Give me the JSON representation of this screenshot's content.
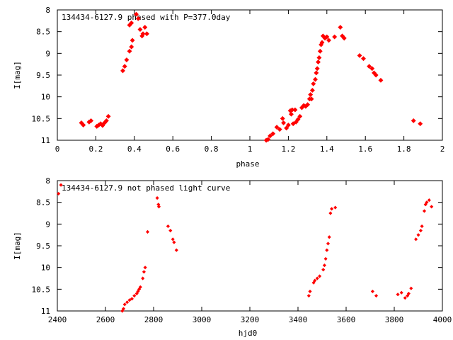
{
  "chart_data": [
    {
      "type": "scatter",
      "title": "134434-6127.9 phased with P=377.0day",
      "xlabel": "phase",
      "ylabel": "I[mag]",
      "xlim": [
        0,
        2
      ],
      "ylim": [
        8,
        11
      ],
      "y_inverted": true,
      "x_ticks": [
        0,
        0.2,
        0.4,
        0.6,
        0.8,
        1,
        1.2,
        1.4,
        1.6,
        1.8,
        2
      ],
      "x_tick_labels": [
        "0",
        "0.2",
        "0.4",
        "0.6",
        "0.8",
        "1",
        "1.2",
        "1.4",
        "1.6",
        "1.8",
        "2"
      ],
      "y_ticks": [
        8,
        8.5,
        9,
        9.5,
        10,
        10.5,
        11
      ],
      "y_tick_labels": [
        "8",
        "8.5",
        "9",
        "9.5",
        "10",
        "10.5",
        "11"
      ],
      "grid": false,
      "marker_color": "#ff0000",
      "points": [
        [
          0.125,
          10.6
        ],
        [
          0.135,
          10.65
        ],
        [
          0.165,
          10.58
        ],
        [
          0.175,
          10.55
        ],
        [
          0.205,
          10.68
        ],
        [
          0.215,
          10.65
        ],
        [
          0.225,
          10.62
        ],
        [
          0.235,
          10.66
        ],
        [
          0.245,
          10.6
        ],
        [
          0.255,
          10.55
        ],
        [
          0.265,
          10.45
        ],
        [
          0.34,
          9.4
        ],
        [
          0.35,
          9.3
        ],
        [
          0.36,
          9.15
        ],
        [
          0.375,
          8.95
        ],
        [
          0.385,
          8.85
        ],
        [
          0.39,
          8.7
        ],
        [
          0.375,
          8.35
        ],
        [
          0.385,
          8.3
        ],
        [
          0.41,
          8.1
        ],
        [
          0.42,
          8.2
        ],
        [
          0.43,
          8.45
        ],
        [
          0.44,
          8.6
        ],
        [
          0.445,
          8.55
        ],
        [
          0.455,
          8.4
        ],
        [
          0.465,
          8.55
        ],
        [
          1.085,
          11.0
        ],
        [
          1.095,
          10.98
        ],
        [
          1.105,
          10.9
        ],
        [
          1.12,
          10.85
        ],
        [
          1.14,
          10.7
        ],
        [
          1.155,
          10.75
        ],
        [
          1.17,
          10.5
        ],
        [
          1.175,
          10.6
        ],
        [
          1.19,
          10.72
        ],
        [
          1.2,
          10.65
        ],
        [
          1.21,
          10.32
        ],
        [
          1.215,
          10.4
        ],
        [
          1.22,
          10.3
        ],
        [
          1.225,
          10.62
        ],
        [
          1.235,
          10.3
        ],
        [
          1.24,
          10.58
        ],
        [
          1.25,
          10.52
        ],
        [
          1.26,
          10.45
        ],
        [
          1.27,
          10.25
        ],
        [
          1.28,
          10.2
        ],
        [
          1.29,
          10.22
        ],
        [
          1.3,
          10.18
        ],
        [
          1.31,
          10.05
        ],
        [
          1.315,
          9.95
        ],
        [
          1.32,
          10.05
        ],
        [
          1.325,
          9.85
        ],
        [
          1.33,
          9.7
        ],
        [
          1.34,
          9.6
        ],
        [
          1.345,
          9.45
        ],
        [
          1.35,
          9.35
        ],
        [
          1.355,
          9.2
        ],
        [
          1.36,
          9.1
        ],
        [
          1.365,
          8.95
        ],
        [
          1.37,
          8.8
        ],
        [
          1.375,
          8.75
        ],
        [
          1.38,
          8.6
        ],
        [
          1.39,
          8.65
        ],
        [
          1.4,
          8.62
        ],
        [
          1.41,
          8.7
        ],
        [
          1.44,
          8.62
        ],
        [
          1.47,
          8.4
        ],
        [
          1.48,
          8.6
        ],
        [
          1.49,
          8.65
        ],
        [
          1.57,
          9.05
        ],
        [
          1.59,
          9.12
        ],
        [
          1.62,
          9.3
        ],
        [
          1.635,
          9.35
        ],
        [
          1.645,
          9.45
        ],
        [
          1.655,
          9.5
        ],
        [
          1.68,
          9.62
        ],
        [
          1.85,
          10.55
        ],
        [
          1.885,
          10.62
        ]
      ]
    },
    {
      "type": "scatter",
      "title": "134434-6127.9 not phased light curve",
      "xlabel": "hjd0",
      "ylabel": "I[mag]",
      "xlim": [
        2400,
        4000
      ],
      "ylim": [
        8,
        11
      ],
      "y_inverted": true,
      "x_ticks": [
        2400,
        2600,
        2800,
        3000,
        3200,
        3400,
        3600,
        3800,
        4000
      ],
      "x_tick_labels": [
        "2400",
        "2600",
        "2800",
        "3000",
        "3200",
        "3400",
        "3600",
        "3800",
        "4000"
      ],
      "y_ticks": [
        8,
        8.5,
        9,
        9.5,
        10,
        10.5,
        11
      ],
      "y_tick_labels": [
        "8",
        "8.5",
        "9",
        "9.5",
        "10",
        "10.5",
        "11"
      ],
      "grid": false,
      "marker_color": "#ff0000",
      "points": [
        [
          2405,
          8.3
        ],
        [
          2415,
          8.1
        ],
        [
          2670,
          11.0
        ],
        [
          2675,
          10.95
        ],
        [
          2680,
          10.85
        ],
        [
          2690,
          10.8
        ],
        [
          2700,
          10.75
        ],
        [
          2710,
          10.72
        ],
        [
          2720,
          10.65
        ],
        [
          2730,
          10.6
        ],
        [
          2735,
          10.55
        ],
        [
          2740,
          10.5
        ],
        [
          2745,
          10.45
        ],
        [
          2755,
          10.25
        ],
        [
          2760,
          10.1
        ],
        [
          2765,
          10.0
        ],
        [
          2775,
          9.18
        ],
        [
          2815,
          8.4
        ],
        [
          2820,
          8.55
        ],
        [
          2822,
          8.6
        ],
        [
          2860,
          9.05
        ],
        [
          2870,
          9.15
        ],
        [
          2880,
          9.35
        ],
        [
          2885,
          9.42
        ],
        [
          2895,
          9.6
        ],
        [
          3445,
          10.65
        ],
        [
          3450,
          10.55
        ],
        [
          3465,
          10.35
        ],
        [
          3470,
          10.3
        ],
        [
          3480,
          10.25
        ],
        [
          3490,
          10.2
        ],
        [
          3505,
          10.05
        ],
        [
          3510,
          9.95
        ],
        [
          3515,
          9.8
        ],
        [
          3520,
          9.6
        ],
        [
          3525,
          9.45
        ],
        [
          3530,
          9.3
        ],
        [
          3535,
          8.75
        ],
        [
          3540,
          8.65
        ],
        [
          3555,
          8.62
        ],
        [
          3710,
          10.55
        ],
        [
          3725,
          10.65
        ],
        [
          3815,
          10.62
        ],
        [
          3830,
          10.58
        ],
        [
          3845,
          10.7
        ],
        [
          3855,
          10.65
        ],
        [
          3860,
          10.6
        ],
        [
          3870,
          10.48
        ],
        [
          3890,
          9.35
        ],
        [
          3900,
          9.25
        ],
        [
          3910,
          9.15
        ],
        [
          3915,
          9.05
        ],
        [
          3925,
          8.7
        ],
        [
          3930,
          8.55
        ],
        [
          3935,
          8.5
        ],
        [
          3945,
          8.45
        ],
        [
          3955,
          8.6
        ]
      ]
    }
  ]
}
